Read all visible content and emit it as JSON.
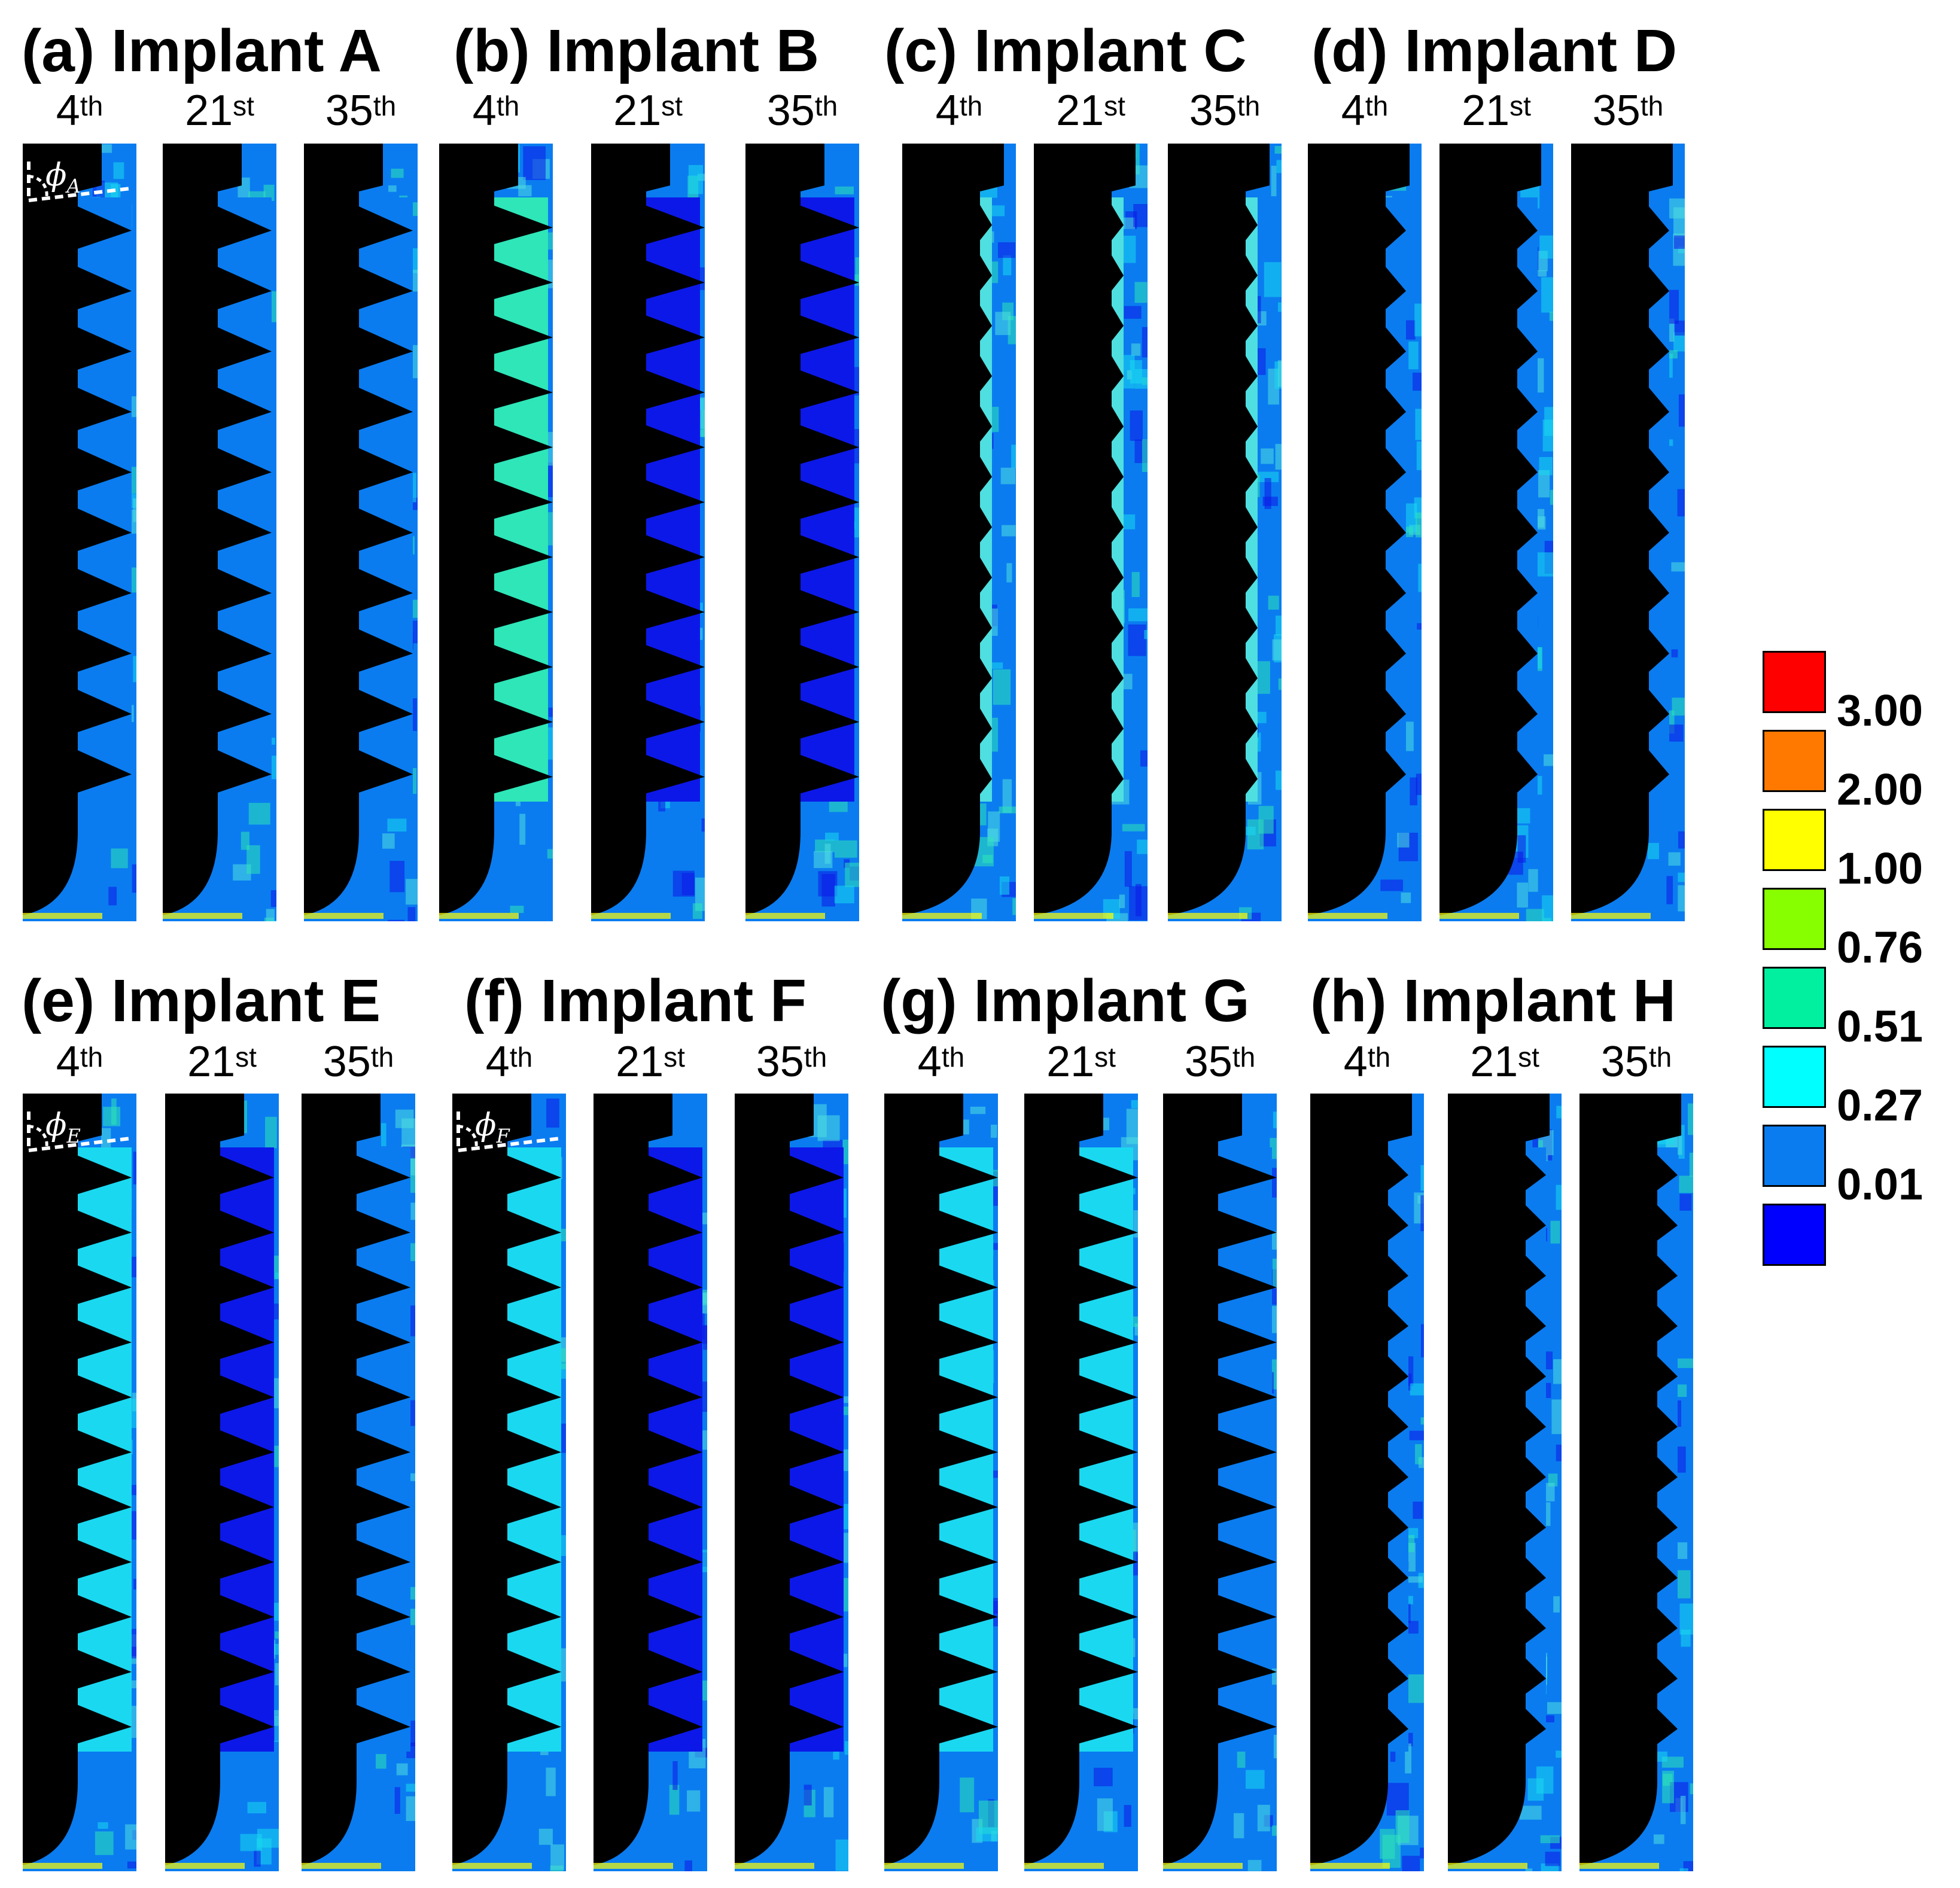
{
  "implants": [
    {
      "id": "A",
      "title": "(a) Implant A",
      "angle_label": "ϕA",
      "angle_sym": "ϕ",
      "angle_sub": "A",
      "show_angle": true,
      "thread": "long",
      "threads_n": 10,
      "fill": [
        "#0a7cf0",
        "#0a7cf0",
        "#0a7cf0"
      ]
    },
    {
      "id": "B",
      "title": "(b) Implant B",
      "angle_label": "",
      "show_angle": false,
      "thread": "long_blade",
      "threads_n": 11,
      "fill": [
        "#2ee6b8",
        "#0c18e8",
        "#0c18e8"
      ]
    },
    {
      "id": "C",
      "title": "(c) Implant C",
      "angle_label": "",
      "show_angle": false,
      "thread": "small",
      "threads_n": 12,
      "fill": [
        "#4fdfe0",
        "#4fdfe0",
        "#4fdfe0"
      ]
    },
    {
      "id": "D",
      "title": "(d) Implant D",
      "angle_label": "",
      "show_angle": false,
      "thread": "medium",
      "threads_n": 10,
      "fill": [
        "#0a7cf0",
        "#0a7cf0",
        "#0a7cf0"
      ]
    },
    {
      "id": "E",
      "title": "(e) Implant E",
      "angle_label": "ϕE",
      "angle_sym": "ϕ",
      "angle_sub": "E",
      "show_angle": true,
      "thread": "long",
      "threads_n": 11,
      "fill": [
        "#1ad8f0",
        "#0c18e8",
        "#0a7cf0"
      ]
    },
    {
      "id": "F",
      "title": "(f) Implant F",
      "angle_label": "ϕF",
      "angle_sym": "ϕ",
      "angle_sub": "F",
      "show_angle": true,
      "thread": "long",
      "threads_n": 11,
      "fill": [
        "#1ad8f0",
        "#0c18e8",
        "#0c18e8"
      ]
    },
    {
      "id": "G",
      "title": "(g) Implant G",
      "angle_label": "",
      "show_angle": false,
      "thread": "long_blade",
      "threads_n": 11,
      "fill": [
        "#1ad8f0",
        "#1ad8f0",
        "#0a7cf0"
      ]
    },
    {
      "id": "H",
      "title": "(h) Implant H",
      "angle_label": "",
      "show_angle": false,
      "thread": "medium",
      "threads_n": 12,
      "fill": [
        "#0a7cf0",
        "#0a7cf0",
        "#0a7cf0"
      ]
    }
  ],
  "time_points": [
    {
      "num": "4",
      "suffix": "th"
    },
    {
      "num": "21",
      "suffix": "st"
    },
    {
      "num": "35",
      "suffix": "th"
    }
  ],
  "colorbar": {
    "colors": [
      "#ff0000",
      "#ff7800",
      "#ffff00",
      "#88ff00",
      "#00f0a0",
      "#00ffff",
      "#0a7cf0",
      "#0000ff"
    ],
    "labels": [
      "3.00",
      "2.00",
      "1.00",
      "0.76",
      "0.51",
      "0.27",
      "0.01"
    ]
  },
  "palette": {
    "implant": "#000000",
    "background_bone": "#0a7cf0"
  }
}
